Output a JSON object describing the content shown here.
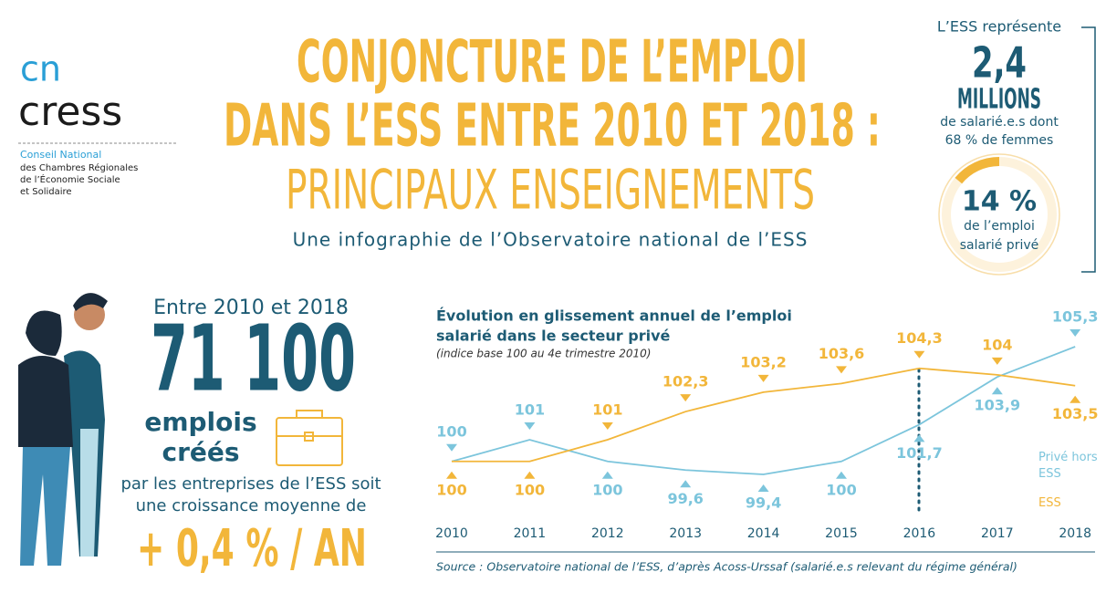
{
  "logo": {
    "short": "cn",
    "name": "cress",
    "lines": [
      "Conseil National",
      "des Chambres Régionales",
      "de l’Économie Sociale",
      "et Solidaire"
    ]
  },
  "header": {
    "title": [
      "CONJONCTURE DE L’EMPLOI",
      "DANS L’ESS ENTRE 2010 ET 2018 :",
      "PRINCIPAUX ENSEIGNEMENTS"
    ],
    "subtitle": "Une infographie de l’Observatoire national de l’ESS"
  },
  "key_figures": {
    "intro": "L’ESS représente",
    "employees": "2,4",
    "unit": "MILLIONS",
    "detail": [
      "de salarié.e.s dont",
      "68 % de femmes"
    ],
    "share": {
      "value": 14,
      "label": "14 %"
    },
    "share_text": [
      "de l’emploi",
      "salarié privé"
    ]
  },
  "jobs": {
    "period": "Entre 2010 et 2018",
    "count": "71 100",
    "label": [
      "emplois",
      "créés"
    ],
    "text": [
      "par les entreprises de l’ESS soit",
      "une croissance moyenne de"
    ],
    "growth": "+ 0,4 % / AN"
  },
  "chart_data": {
    "type": "line",
    "title": [
      "Évolution en glissement annuel de l’emploi",
      "salarié dans le secteur privé"
    ],
    "subtitle": "(indice base 100 au 4e trimestre 2010)",
    "categories": [
      "2010",
      "2011",
      "2012",
      "2013",
      "2014",
      "2015",
      "2016",
      "2017",
      "2018"
    ],
    "series": [
      {
        "name": "Privé hors ESS",
        "color": "#7cc5dc",
        "values": [
          100,
          101,
          100,
          99.6,
          99.4,
          100,
          101.7,
          103.9,
          105.3
        ],
        "value_labels": [
          "100",
          "101",
          "100",
          "99,6",
          "99,4",
          "100",
          "101,7",
          "103,9",
          "105,3"
        ]
      },
      {
        "name": "ESS",
        "color": "#f2b63a",
        "values": [
          100,
          100,
          101,
          102.3,
          103.2,
          103.6,
          104.3,
          104,
          103.5
        ],
        "value_labels": [
          "100",
          "100",
          "101",
          "102,3",
          "103,2",
          "103,6",
          "104,3",
          "104",
          "103,5"
        ]
      }
    ],
    "source": "Source : Observatoire national de l’ESS, d’après Acoss-Urssaf (salarié.e.s relevant du régime général)"
  }
}
